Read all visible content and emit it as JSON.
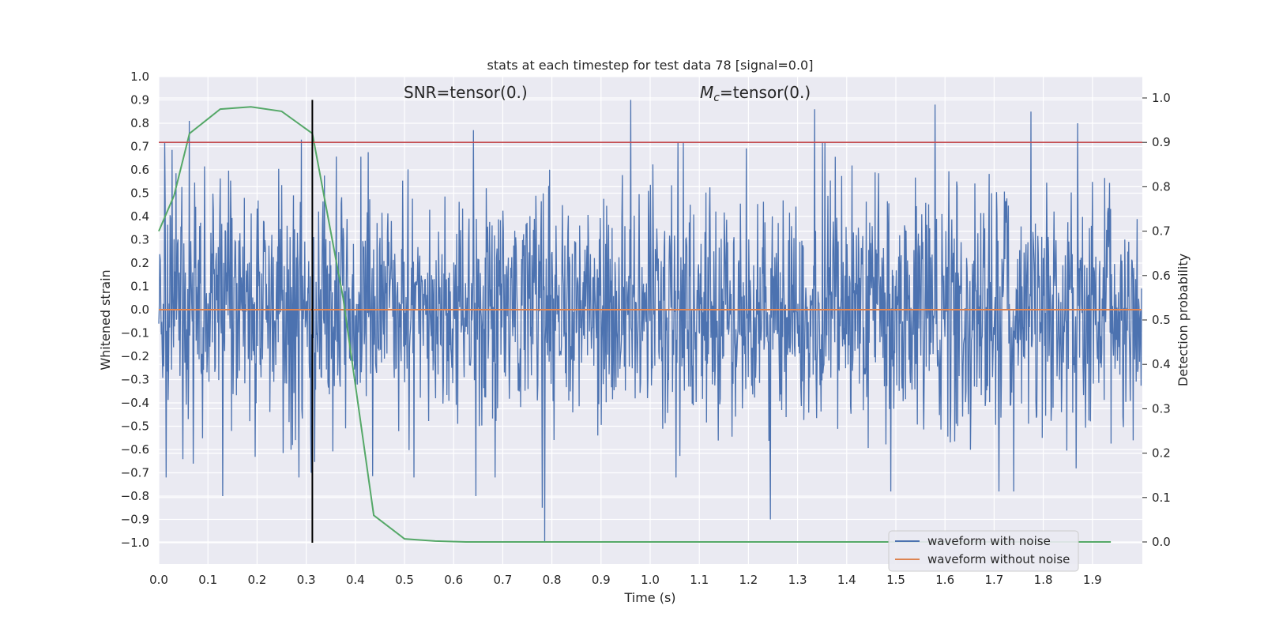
{
  "chart_data": {
    "type": "line",
    "title": "stats at each timestep for test data 78 [signal=0.0]",
    "xlabel": "Time (s)",
    "ylabel": "Whitened strain",
    "y2label": "Detection probability",
    "xlim": [
      0.0,
      2.0
    ],
    "ylim": [
      -1.09,
      1.0
    ],
    "y2lim": [
      -0.05,
      1.05
    ],
    "x_ticks": [
      0.0,
      0.1,
      0.2,
      0.3,
      0.4,
      0.5,
      0.6,
      0.7,
      0.8,
      0.9,
      1.0,
      1.1,
      1.2,
      1.3,
      1.4,
      1.5,
      1.6,
      1.7,
      1.8,
      1.9
    ],
    "x_tick_labels": [
      "0.0",
      "0.1",
      "0.2",
      "0.3",
      "0.4",
      "0.5",
      "0.6",
      "0.7",
      "0.8",
      "0.9",
      "1.0",
      "1.1",
      "1.2",
      "1.3",
      "1.4",
      "1.5",
      "1.6",
      "1.7",
      "1.8",
      "1.9"
    ],
    "y_ticks": [
      1.0,
      0.9,
      0.8,
      0.7,
      0.6,
      0.5,
      0.4,
      0.3,
      0.2,
      0.1,
      0.0,
      -0.1,
      -0.2,
      -0.3,
      -0.4,
      -0.5,
      -0.6,
      -0.7,
      -0.8,
      -0.9,
      -1.0
    ],
    "y_tick_labels": [
      "1.0",
      "0.9",
      "0.8",
      "0.7",
      "0.6",
      "0.5",
      "0.4",
      "0.3",
      "0.2",
      "0.1",
      "0.0",
      "−0.1",
      "−0.2",
      "−0.3",
      "−0.4",
      "−0.5",
      "−0.6",
      "−0.7",
      "−0.8",
      "−0.9",
      "−1.0"
    ],
    "y2_ticks": [
      1.0,
      0.9,
      0.8,
      0.7,
      0.6,
      0.5,
      0.4,
      0.3,
      0.2,
      0.1,
      0.0
    ],
    "y2_tick_labels": [
      "1.0",
      "0.9",
      "0.8",
      "0.7",
      "0.6",
      "0.5",
      "0.4",
      "0.3",
      "0.2",
      "0.1",
      "0.0"
    ],
    "grid": true,
    "legend_position": "lower-right",
    "annotations": {
      "snr": "SNR=tensor(0.)",
      "mc_symbol": "M",
      "mc_sub": "c",
      "mc_rest": "=tensor(0.)"
    },
    "series": [
      {
        "name": "waveform with noise",
        "axis": "left",
        "color": "#4c72b0",
        "style": "dense random noise approx. within -0.6..0.6 with spikes",
        "noise_amplitude": 0.25,
        "peaks": [
          {
            "x": 0.062,
            "y": 0.81
          },
          {
            "x": 0.29,
            "y": 0.73
          },
          {
            "x": 0.64,
            "y": 0.77
          },
          {
            "x": 0.96,
            "y": 0.9
          },
          {
            "x": 1.335,
            "y": 0.86
          },
          {
            "x": 1.58,
            "y": 0.88
          },
          {
            "x": 1.775,
            "y": 0.85
          },
          {
            "x": 1.87,
            "y": 0.8
          }
        ],
        "troughs": [
          {
            "x": 0.13,
            "y": -0.8
          },
          {
            "x": 0.31,
            "y": -0.7
          },
          {
            "x": 0.645,
            "y": -0.8
          },
          {
            "x": 0.78,
            "y": -0.85
          },
          {
            "x": 0.785,
            "y": -1.0
          },
          {
            "x": 1.245,
            "y": -0.9
          },
          {
            "x": 1.49,
            "y": -0.78
          },
          {
            "x": 1.71,
            "y": -0.78
          },
          {
            "x": 1.74,
            "y": -0.78
          }
        ]
      },
      {
        "name": "waveform without noise",
        "axis": "left",
        "color": "#dd8452",
        "x": [
          0.0,
          2.0
        ],
        "y": [
          0.0,
          0.0
        ]
      },
      {
        "name": "",
        "axis": "right",
        "color": "#55a868",
        "x": [
          0.0,
          0.031,
          0.0625,
          0.125,
          0.1875,
          0.25,
          0.3125,
          0.375,
          0.4375,
          0.5,
          0.5625,
          0.625,
          0.6875,
          0.75,
          1.0,
          1.25,
          1.5,
          1.75,
          1.9375
        ],
        "y": [
          0.7,
          0.78,
          0.92,
          0.975,
          0.98,
          0.97,
          0.92,
          0.55,
          0.06,
          0.007,
          0.002,
          0.0,
          0.0,
          0.0,
          0.0,
          0.0,
          0.0,
          0.0,
          0.0
        ]
      }
    ],
    "reference_lines": [
      {
        "orientation": "horizontal",
        "axis": "right",
        "value": 0.9,
        "color": "#c44e52"
      },
      {
        "orientation": "vertical",
        "value": 0.3125,
        "y_from": -1.0,
        "y_to": 0.9,
        "color": "#000000"
      }
    ]
  }
}
